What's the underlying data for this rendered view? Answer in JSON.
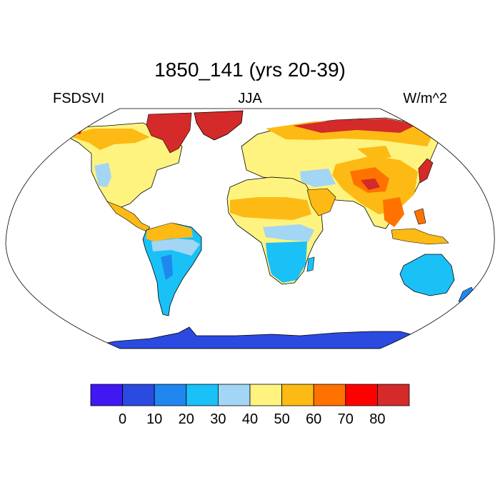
{
  "title": "1850_141 (yrs 20-39)",
  "left_label": "FSDSVI",
  "center_label": "JJA",
  "right_label": "W/m^2",
  "colorbar": {
    "colors": [
      "#3f18f2",
      "#2b4ae0",
      "#2087f0",
      "#19c1f7",
      "#a3d5f5",
      "#fff380",
      "#fdba14",
      "#ff7200",
      "#ff0000",
      "#d42a2a"
    ],
    "ticks": [
      "0",
      "10",
      "20",
      "30",
      "40",
      "50",
      "60",
      "70",
      "80"
    ]
  }
}
